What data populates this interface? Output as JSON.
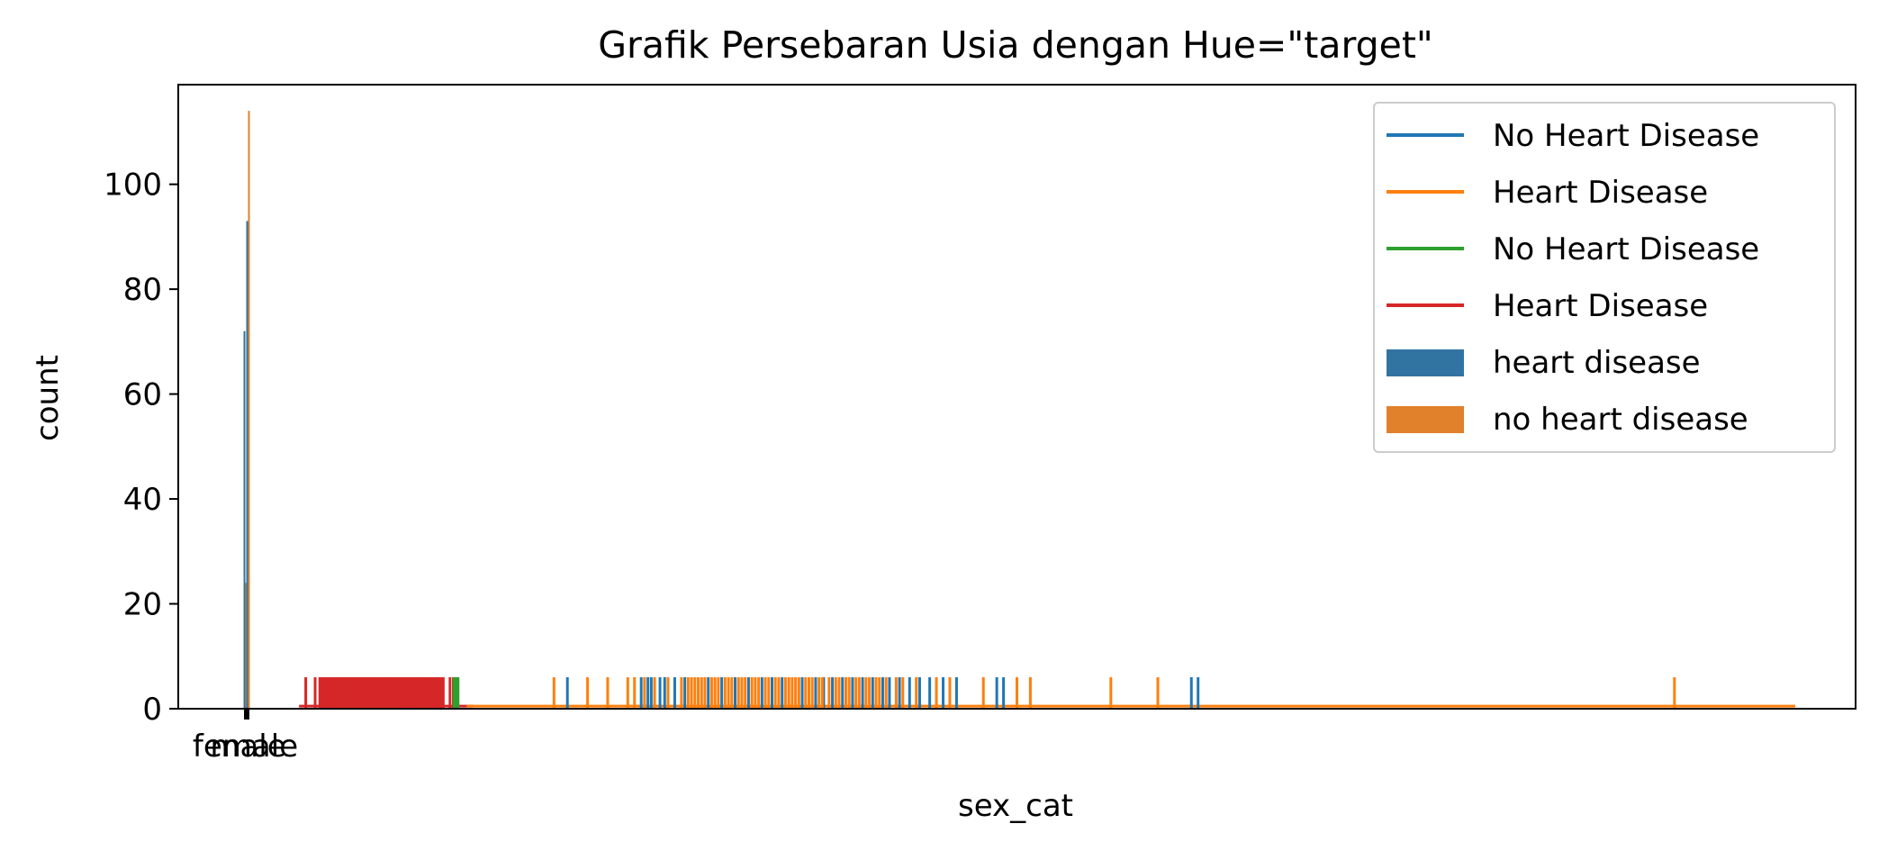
{
  "chart_data": {
    "type": "bar",
    "title": "Grafik Persebaran Usia dengan Hue=\"target\"",
    "xlabel": "sex_cat",
    "ylabel": "count",
    "x_ticks": [
      "female",
      "male"
    ],
    "y_ticks": [
      "0",
      "20",
      "40",
      "60",
      "80",
      "100"
    ],
    "ylim": [
      0,
      119
    ],
    "grid": false,
    "legend_position": "top-right",
    "legend": [
      {
        "label": "No Heart Disease",
        "kind": "line",
        "color": "#1f77b4"
      },
      {
        "label": "Heart Disease",
        "kind": "line",
        "color": "#ff7f0e"
      },
      {
        "label": "No Heart Disease",
        "kind": "line",
        "color": "#2ca02c"
      },
      {
        "label": "Heart Disease",
        "kind": "line",
        "color": "#d62728"
      },
      {
        "label": "heart disease",
        "kind": "patch",
        "color": "#3274a1"
      },
      {
        "label": "no heart disease",
        "kind": "patch",
        "color": "#e1812c"
      }
    ],
    "categorical_bars": [
      {
        "category": "female",
        "series": "heart disease",
        "value": 72,
        "color": "#3274a1"
      },
      {
        "category": "female",
        "series": "no heart disease",
        "value": 24,
        "color": "#e1812c"
      },
      {
        "category": "male",
        "series": "heart disease",
        "value": 93,
        "color": "#3274a1"
      },
      {
        "category": "male",
        "series": "no heart disease",
        "value": 114,
        "color": "#e1812c"
      }
    ],
    "rug_series": [
      {
        "name": "Heart Disease",
        "color": "#d62728",
        "height": 6,
        "x": [
          0.9,
          1.04,
          1.11,
          1.12,
          1.15,
          1.18,
          1.21,
          1.24,
          1.27,
          1.3,
          1.33,
          1.36,
          1.39,
          1.42,
          1.45,
          1.48,
          1.51,
          1.54,
          1.57,
          1.6,
          1.63,
          1.66,
          1.69,
          1.72,
          1.75,
          1.78,
          1.81,
          1.84,
          1.87,
          1.9,
          1.93,
          1.96,
          1.99,
          2.02,
          2.05,
          2.08,
          2.11,
          2.14,
          2.17,
          2.2,
          2.23,
          2.26,
          2.29,
          2.32,
          2.35,
          2.38,
          2.41,
          2.44,
          2.47,
          2.5,
          2.53,
          2.56,
          2.59,
          2.62,
          2.65,
          2.68,
          2.71,
          2.74,
          2.77,
          2.8,
          2.83,
          2.86,
          2.89,
          2.92,
          2.95,
          3.05,
          3.1
        ]
      },
      {
        "name": "No Heart Disease",
        "color": "#2ca02c",
        "height": 6,
        "x": [
          3.11,
          3.14,
          3.17
        ]
      },
      {
        "name": "No Heart Disease",
        "color": "#1f77b4",
        "height": 6,
        "x": [
          4.8,
          5.9,
          6.0,
          6.05,
          6.18,
          6.25,
          6.4,
          6.55,
          6.9,
          7.1,
          7.3,
          7.5,
          7.7,
          7.85,
          8.0,
          8.3,
          8.5,
          8.62,
          8.75,
          8.9,
          9.05,
          9.2,
          9.35,
          9.5,
          9.6,
          9.75,
          9.9,
          10.05,
          10.2,
          10.4,
          10.6,
          11.2,
          11.3,
          14.1,
          14.2
        ]
      },
      {
        "name": "Heart Disease",
        "color": "#ff7f0e",
        "height": 6,
        "x": [
          4.6,
          5.1,
          5.4,
          5.7,
          5.8,
          5.95,
          6.1,
          6.3,
          6.5,
          6.6,
          6.65,
          6.7,
          6.75,
          6.8,
          6.85,
          6.95,
          7.0,
          7.05,
          7.15,
          7.2,
          7.25,
          7.35,
          7.4,
          7.45,
          7.55,
          7.6,
          7.65,
          7.75,
          7.8,
          7.9,
          7.95,
          8.05,
          8.1,
          8.15,
          8.2,
          8.25,
          8.35,
          8.4,
          8.45,
          8.55,
          8.6,
          8.7,
          8.8,
          8.85,
          8.95,
          9.0,
          9.1,
          9.15,
          9.25,
          9.3,
          9.4,
          9.45,
          9.55,
          9.7,
          9.8,
          10.0,
          10.3,
          10.5,
          11.0,
          11.5,
          11.7,
          12.9,
          13.6,
          21.3
        ]
      }
    ],
    "kde_series": [
      {
        "name": "Heart Disease",
        "color": "#d62728",
        "x_start": 0.8,
        "x_end": 3.4,
        "value": 0.5
      },
      {
        "name": "Heart Disease",
        "color": "#ff7f0e",
        "x_start": 3.3,
        "x_end": 23.1,
        "value": 0.5
      }
    ],
    "x_data_range": [
      -1.0,
      24.0
    ]
  }
}
